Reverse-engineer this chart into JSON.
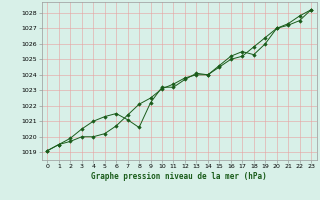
{
  "title": "Graphe pression niveau de la mer (hPa)",
  "bg_color": "#d8f0e8",
  "plot_bg_color": "#d8f0e8",
  "grid_color": "#c8c8c8",
  "line_color": "#1a5c1a",
  "marker_color": "#1a5c1a",
  "xlim": [
    -0.5,
    23.5
  ],
  "ylim": [
    1018.5,
    1028.7
  ],
  "xticks": [
    0,
    1,
    2,
    3,
    4,
    5,
    6,
    7,
    8,
    9,
    10,
    11,
    12,
    13,
    14,
    15,
    16,
    17,
    18,
    19,
    20,
    21,
    22,
    23
  ],
  "yticks": [
    1019,
    1020,
    1021,
    1022,
    1023,
    1024,
    1025,
    1026,
    1027,
    1028
  ],
  "series1_x": [
    0,
    1,
    2,
    3,
    4,
    5,
    6,
    7,
    8,
    9,
    10,
    11,
    12,
    13,
    14,
    15,
    16,
    17,
    18,
    19,
    20,
    21,
    22,
    23
  ],
  "series1_y": [
    1019.1,
    1019.5,
    1019.7,
    1020.0,
    1020.0,
    1020.2,
    1020.7,
    1021.4,
    1022.1,
    1022.5,
    1023.1,
    1023.4,
    1023.8,
    1024.0,
    1024.0,
    1024.5,
    1025.0,
    1025.2,
    1025.8,
    1026.4,
    1027.0,
    1027.2,
    1027.5,
    1028.2
  ],
  "series2_x": [
    0,
    1,
    2,
    3,
    4,
    5,
    6,
    7,
    8,
    9,
    10,
    11,
    12,
    13,
    14,
    15,
    16,
    17,
    18,
    19,
    20,
    21,
    22,
    23
  ],
  "series2_y": [
    1019.1,
    1019.5,
    1019.9,
    1020.5,
    1021.0,
    1021.3,
    1021.5,
    1021.1,
    1020.6,
    1022.2,
    1023.2,
    1023.2,
    1023.7,
    1024.1,
    1024.0,
    1024.6,
    1025.2,
    1025.5,
    1025.3,
    1026.0,
    1027.0,
    1027.3,
    1027.8,
    1028.2
  ]
}
